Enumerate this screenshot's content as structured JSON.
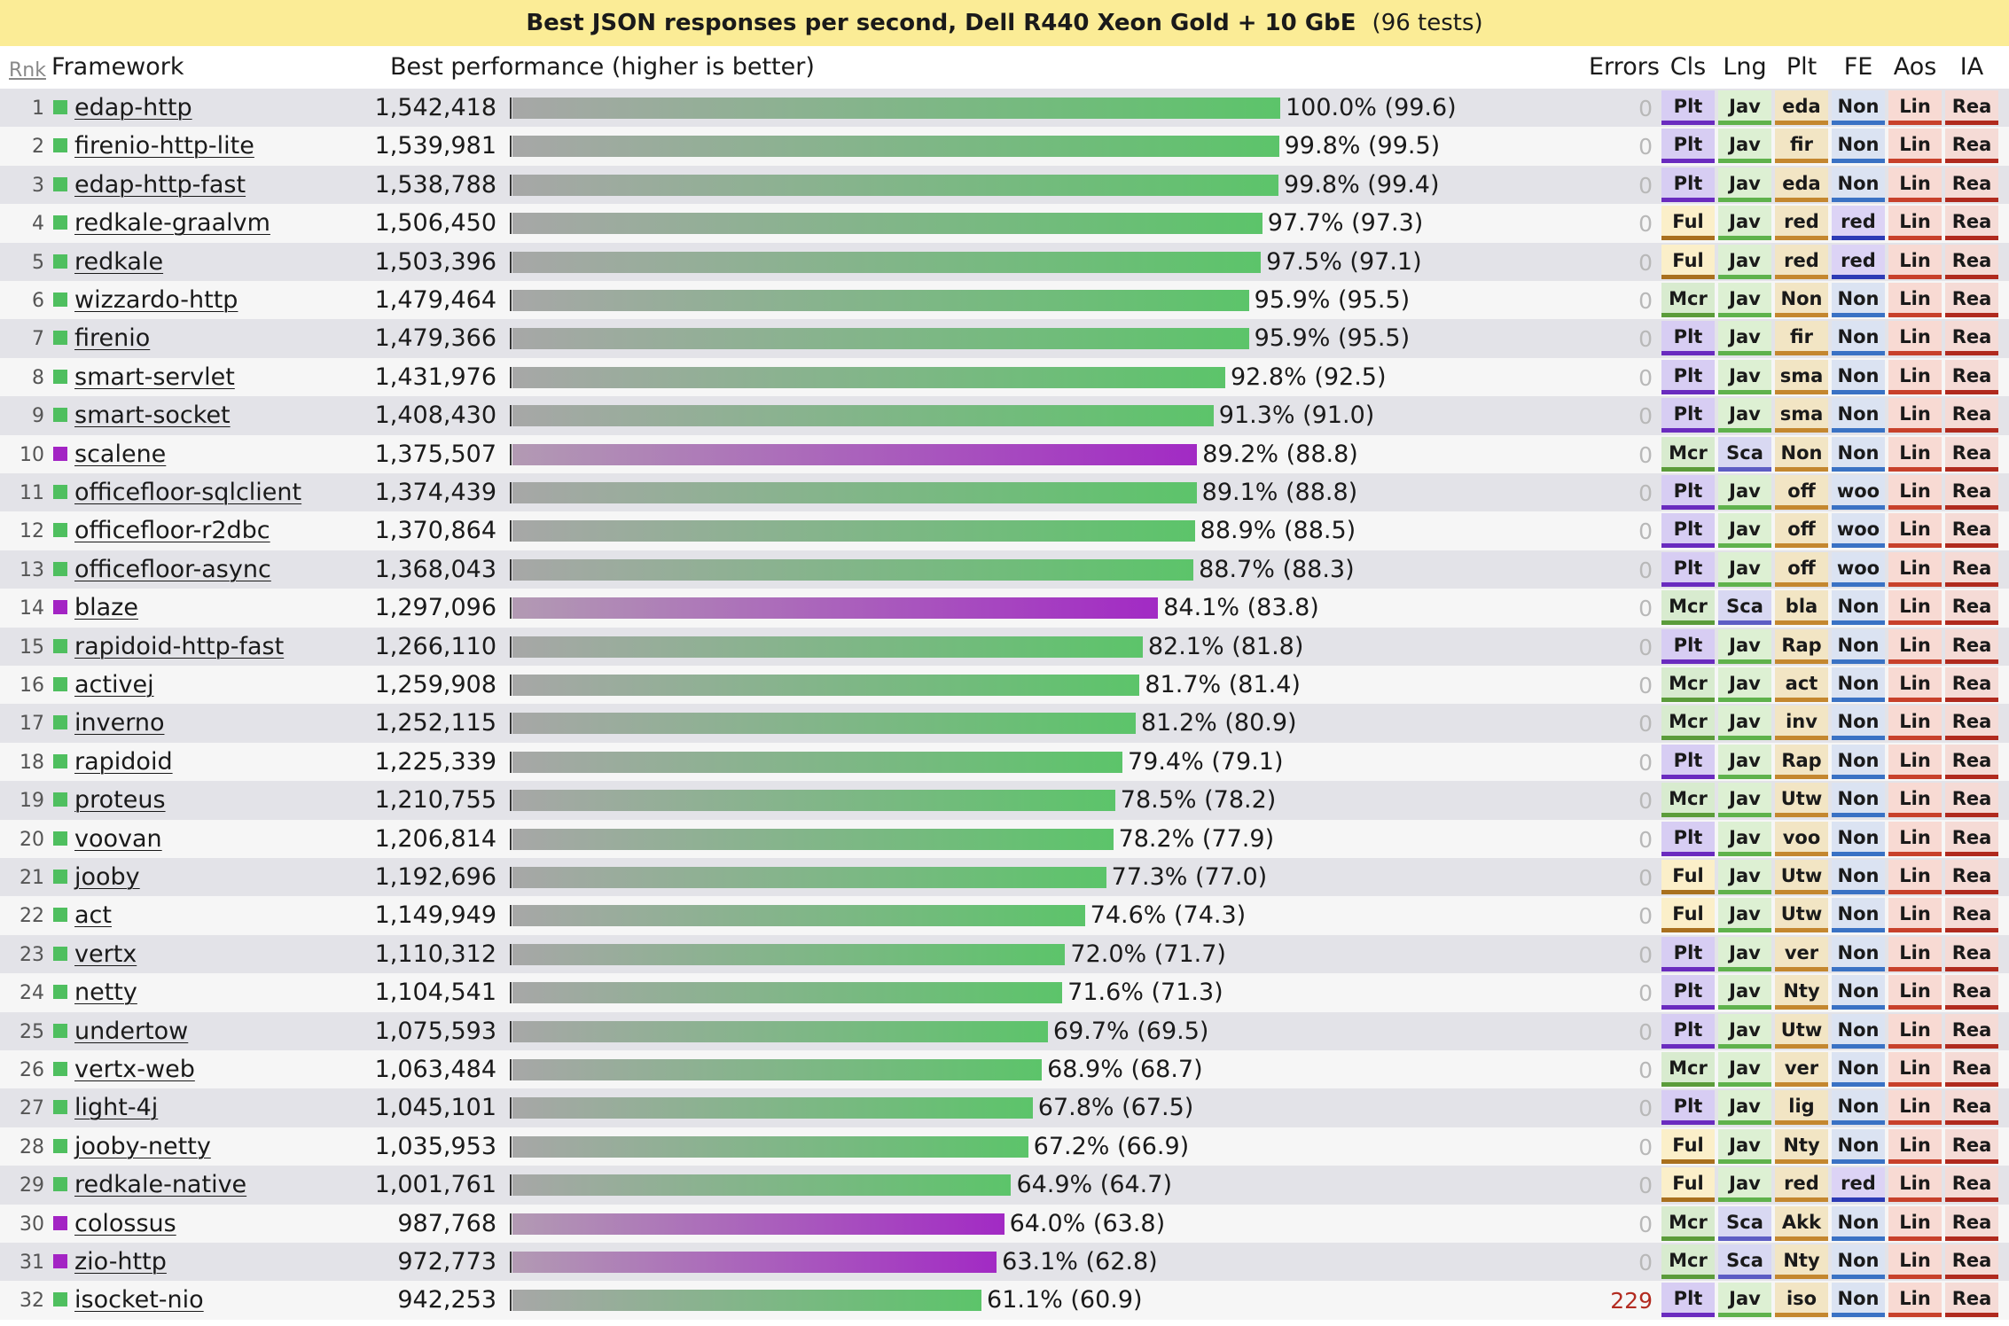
{
  "title": "Best JSON responses per second, Dell R440 Xeon Gold + 10 GbE",
  "test_count": "(96 tests)",
  "headers": {
    "rank": "Rnk",
    "framework": "Framework",
    "performance": "Best performance (higher is better)",
    "errors": "Errors",
    "tags": [
      "Cls",
      "Lng",
      "Plt",
      "FE",
      "Aos",
      "IA"
    ]
  },
  "colors": {
    "java_bar_start": "#a7a7a7",
    "java_bar_end": "#5cc46a",
    "scala_bar_start": "#b29ab3",
    "scala_bar_end": "#a22ac4",
    "java_square": "#4fbf5f",
    "scala_square": "#a324c4",
    "row_even": "#e3e3e8",
    "row_odd": "#f6f6f6",
    "title_bg": "#fbec96",
    "error_zero": "#b8b8b8",
    "error_nonzero": "#b32b20"
  },
  "tag_styles": {
    "Plt": {
      "bg": "#d7cdf3",
      "border": "#6a2bbf"
    },
    "Ful": {
      "bg": "#fbefc9",
      "border": "#a9701e"
    },
    "Mcr": {
      "bg": "#d8ebcf",
      "border": "#5b9c3a"
    },
    "Jav": {
      "bg": "#ddf0d3",
      "border": "#5fb24c"
    },
    "Sca": {
      "bg": "#d8d8f2",
      "border": "#5d5dc4"
    },
    "plt": {
      "bg": "#f2e5c4",
      "border": "#c4872f"
    },
    "fe": {
      "bg": "#dbe3f2",
      "border": "#3a72c4"
    },
    "fe_red": {
      "bg": "#dcd3f5",
      "border": "#2d3bb5"
    },
    "Lin": {
      "bg": "#f8dad3",
      "border": "#c8412b"
    },
    "Rea": {
      "bg": "#f5dbd6",
      "border": "#b02a1e"
    }
  },
  "chart_data": {
    "type": "bar",
    "orientation": "horizontal",
    "title": "Best JSON responses per second, Dell R440 Xeon Gold + 10 GbE",
    "value_label": "Best performance (higher is better)",
    "xlim": [
      0,
      1542418
    ],
    "rows": [
      {
        "rank": 1,
        "framework": "edap-http",
        "value_text": "1,542,418",
        "value": 1542418,
        "pct": "100.0% (99.6)",
        "errors": 0,
        "lang": "Jav",
        "tags": [
          "Plt",
          "Jav",
          "eda",
          "Non",
          "Lin",
          "Rea"
        ]
      },
      {
        "rank": 2,
        "framework": "firenio-http-lite",
        "value_text": "1,539,981",
        "value": 1539981,
        "pct": "99.8% (99.5)",
        "errors": 0,
        "lang": "Jav",
        "tags": [
          "Plt",
          "Jav",
          "fir",
          "Non",
          "Lin",
          "Rea"
        ]
      },
      {
        "rank": 3,
        "framework": "edap-http-fast",
        "value_text": "1,538,788",
        "value": 1538788,
        "pct": "99.8% (99.4)",
        "errors": 0,
        "lang": "Jav",
        "tags": [
          "Plt",
          "Jav",
          "eda",
          "Non",
          "Lin",
          "Rea"
        ]
      },
      {
        "rank": 4,
        "framework": "redkale-graalvm",
        "value_text": "1,506,450",
        "value": 1506450,
        "pct": "97.7% (97.3)",
        "errors": 0,
        "lang": "Jav",
        "tags": [
          "Ful",
          "Jav",
          "red",
          "red",
          "Lin",
          "Rea"
        ]
      },
      {
        "rank": 5,
        "framework": "redkale",
        "value_text": "1,503,396",
        "value": 1503396,
        "pct": "97.5% (97.1)",
        "errors": 0,
        "lang": "Jav",
        "tags": [
          "Ful",
          "Jav",
          "red",
          "red",
          "Lin",
          "Rea"
        ]
      },
      {
        "rank": 6,
        "framework": "wizzardo-http",
        "value_text": "1,479,464",
        "value": 1479464,
        "pct": "95.9% (95.5)",
        "errors": 0,
        "lang": "Jav",
        "tags": [
          "Mcr",
          "Jav",
          "Non",
          "Non",
          "Lin",
          "Rea"
        ]
      },
      {
        "rank": 7,
        "framework": "firenio",
        "value_text": "1,479,366",
        "value": 1479366,
        "pct": "95.9% (95.5)",
        "errors": 0,
        "lang": "Jav",
        "tags": [
          "Plt",
          "Jav",
          "fir",
          "Non",
          "Lin",
          "Rea"
        ]
      },
      {
        "rank": 8,
        "framework": "smart-servlet",
        "value_text": "1,431,976",
        "value": 1431976,
        "pct": "92.8% (92.5)",
        "errors": 0,
        "lang": "Jav",
        "tags": [
          "Plt",
          "Jav",
          "sma",
          "Non",
          "Lin",
          "Rea"
        ]
      },
      {
        "rank": 9,
        "framework": "smart-socket",
        "value_text": "1,408,430",
        "value": 1408430,
        "pct": "91.3% (91.0)",
        "errors": 0,
        "lang": "Jav",
        "tags": [
          "Plt",
          "Jav",
          "sma",
          "Non",
          "Lin",
          "Rea"
        ]
      },
      {
        "rank": 10,
        "framework": "scalene",
        "value_text": "1,375,507",
        "value": 1375507,
        "pct": "89.2% (88.8)",
        "errors": 0,
        "lang": "Sca",
        "tags": [
          "Mcr",
          "Sca",
          "Non",
          "Non",
          "Lin",
          "Rea"
        ]
      },
      {
        "rank": 11,
        "framework": "officefloor-sqlclient",
        "value_text": "1,374,439",
        "value": 1374439,
        "pct": "89.1% (88.8)",
        "errors": 0,
        "lang": "Jav",
        "tags": [
          "Plt",
          "Jav",
          "off",
          "woo",
          "Lin",
          "Rea"
        ]
      },
      {
        "rank": 12,
        "framework": "officefloor-r2dbc",
        "value_text": "1,370,864",
        "value": 1370864,
        "pct": "88.9% (88.5)",
        "errors": 0,
        "lang": "Jav",
        "tags": [
          "Plt",
          "Jav",
          "off",
          "woo",
          "Lin",
          "Rea"
        ]
      },
      {
        "rank": 13,
        "framework": "officefloor-async",
        "value_text": "1,368,043",
        "value": 1368043,
        "pct": "88.7% (88.3)",
        "errors": 0,
        "lang": "Jav",
        "tags": [
          "Plt",
          "Jav",
          "off",
          "woo",
          "Lin",
          "Rea"
        ]
      },
      {
        "rank": 14,
        "framework": "blaze",
        "value_text": "1,297,096",
        "value": 1297096,
        "pct": "84.1% (83.8)",
        "errors": 0,
        "lang": "Sca",
        "tags": [
          "Mcr",
          "Sca",
          "bla",
          "Non",
          "Lin",
          "Rea"
        ]
      },
      {
        "rank": 15,
        "framework": "rapidoid-http-fast",
        "value_text": "1,266,110",
        "value": 1266110,
        "pct": "82.1% (81.8)",
        "errors": 0,
        "lang": "Jav",
        "tags": [
          "Plt",
          "Jav",
          "Rap",
          "Non",
          "Lin",
          "Rea"
        ]
      },
      {
        "rank": 16,
        "framework": "activej",
        "value_text": "1,259,908",
        "value": 1259908,
        "pct": "81.7% (81.4)",
        "errors": 0,
        "lang": "Jav",
        "tags": [
          "Mcr",
          "Jav",
          "act",
          "Non",
          "Lin",
          "Rea"
        ]
      },
      {
        "rank": 17,
        "framework": "inverno",
        "value_text": "1,252,115",
        "value": 1252115,
        "pct": "81.2% (80.9)",
        "errors": 0,
        "lang": "Jav",
        "tags": [
          "Mcr",
          "Jav",
          "inv",
          "Non",
          "Lin",
          "Rea"
        ]
      },
      {
        "rank": 18,
        "framework": "rapidoid",
        "value_text": "1,225,339",
        "value": 1225339,
        "pct": "79.4% (79.1)",
        "errors": 0,
        "lang": "Jav",
        "tags": [
          "Plt",
          "Jav",
          "Rap",
          "Non",
          "Lin",
          "Rea"
        ]
      },
      {
        "rank": 19,
        "framework": "proteus",
        "value_text": "1,210,755",
        "value": 1210755,
        "pct": "78.5% (78.2)",
        "errors": 0,
        "lang": "Jav",
        "tags": [
          "Mcr",
          "Jav",
          "Utw",
          "Non",
          "Lin",
          "Rea"
        ]
      },
      {
        "rank": 20,
        "framework": "voovan",
        "value_text": "1,206,814",
        "value": 1206814,
        "pct": "78.2% (77.9)",
        "errors": 0,
        "lang": "Jav",
        "tags": [
          "Plt",
          "Jav",
          "voo",
          "Non",
          "Lin",
          "Rea"
        ]
      },
      {
        "rank": 21,
        "framework": "jooby",
        "value_text": "1,192,696",
        "value": 1192696,
        "pct": "77.3% (77.0)",
        "errors": 0,
        "lang": "Jav",
        "tags": [
          "Ful",
          "Jav",
          "Utw",
          "Non",
          "Lin",
          "Rea"
        ]
      },
      {
        "rank": 22,
        "framework": "act",
        "value_text": "1,149,949",
        "value": 1149949,
        "pct": "74.6% (74.3)",
        "errors": 0,
        "lang": "Jav",
        "tags": [
          "Ful",
          "Jav",
          "Utw",
          "Non",
          "Lin",
          "Rea"
        ]
      },
      {
        "rank": 23,
        "framework": "vertx",
        "value_text": "1,110,312",
        "value": 1110312,
        "pct": "72.0% (71.7)",
        "errors": 0,
        "lang": "Jav",
        "tags": [
          "Plt",
          "Jav",
          "ver",
          "Non",
          "Lin",
          "Rea"
        ]
      },
      {
        "rank": 24,
        "framework": "netty",
        "value_text": "1,104,541",
        "value": 1104541,
        "pct": "71.6% (71.3)",
        "errors": 0,
        "lang": "Jav",
        "tags": [
          "Plt",
          "Jav",
          "Nty",
          "Non",
          "Lin",
          "Rea"
        ]
      },
      {
        "rank": 25,
        "framework": "undertow",
        "value_text": "1,075,593",
        "value": 1075593,
        "pct": "69.7% (69.5)",
        "errors": 0,
        "lang": "Jav",
        "tags": [
          "Plt",
          "Jav",
          "Utw",
          "Non",
          "Lin",
          "Rea"
        ]
      },
      {
        "rank": 26,
        "framework": "vertx-web",
        "value_text": "1,063,484",
        "value": 1063484,
        "pct": "68.9% (68.7)",
        "errors": 0,
        "lang": "Jav",
        "tags": [
          "Mcr",
          "Jav",
          "ver",
          "Non",
          "Lin",
          "Rea"
        ]
      },
      {
        "rank": 27,
        "framework": "light-4j",
        "value_text": "1,045,101",
        "value": 1045101,
        "pct": "67.8% (67.5)",
        "errors": 0,
        "lang": "Jav",
        "tags": [
          "Plt",
          "Jav",
          "lig",
          "Non",
          "Lin",
          "Rea"
        ]
      },
      {
        "rank": 28,
        "framework": "jooby-netty",
        "value_text": "1,035,953",
        "value": 1035953,
        "pct": "67.2% (66.9)",
        "errors": 0,
        "lang": "Jav",
        "tags": [
          "Ful",
          "Jav",
          "Nty",
          "Non",
          "Lin",
          "Rea"
        ]
      },
      {
        "rank": 29,
        "framework": "redkale-native",
        "value_text": "1,001,761",
        "value": 1001761,
        "pct": "64.9% (64.7)",
        "errors": 0,
        "lang": "Jav",
        "tags": [
          "Ful",
          "Jav",
          "red",
          "red",
          "Lin",
          "Rea"
        ]
      },
      {
        "rank": 30,
        "framework": "colossus",
        "value_text": "987,768",
        "value": 987768,
        "pct": "64.0% (63.8)",
        "errors": 0,
        "lang": "Sca",
        "tags": [
          "Mcr",
          "Sca",
          "Akk",
          "Non",
          "Lin",
          "Rea"
        ]
      },
      {
        "rank": 31,
        "framework": "zio-http",
        "value_text": "972,773",
        "value": 972773,
        "pct": "63.1% (62.8)",
        "errors": 0,
        "lang": "Sca",
        "tags": [
          "Mcr",
          "Sca",
          "Nty",
          "Non",
          "Lin",
          "Rea"
        ]
      },
      {
        "rank": 32,
        "framework": "isocket-nio",
        "value_text": "942,253",
        "value": 942253,
        "pct": "61.1% (60.9)",
        "errors": 229,
        "lang": "Jav",
        "tags": [
          "Plt",
          "Jav",
          "iso",
          "Non",
          "Lin",
          "Rea"
        ]
      }
    ]
  }
}
